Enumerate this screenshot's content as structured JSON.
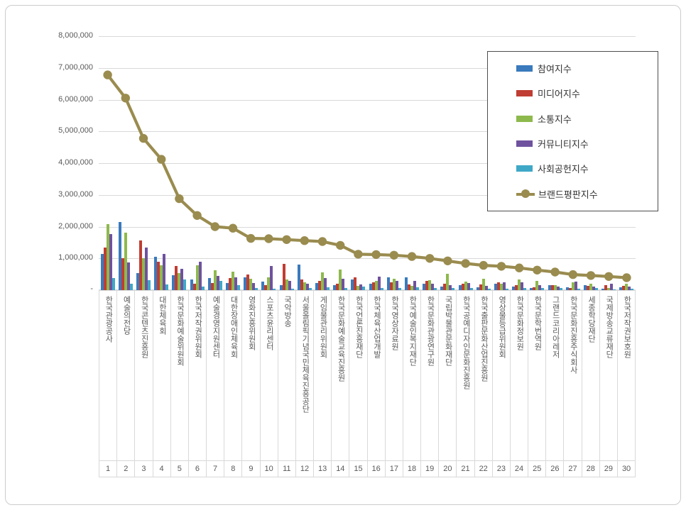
{
  "y_axis": {
    "tick_labels": [
      "8,000,000",
      "7,000,000",
      "6,000,000",
      "5,000,000",
      "4,000,000",
      "3,000,000",
      "2,000,000",
      "1,000,000",
      "-"
    ]
  },
  "rank_row": [
    "1",
    "2",
    "3",
    "4",
    "5",
    "6",
    "7",
    "8",
    "9",
    "10",
    "11",
    "12",
    "13",
    "14",
    "15",
    "16",
    "17",
    "18",
    "19",
    "20",
    "21",
    "22",
    "23",
    "24",
    "25",
    "26",
    "27",
    "28",
    "29",
    "30"
  ],
  "chart_data": {
    "type": "bar+line",
    "title": "",
    "grid": true,
    "legend_position": "top-right",
    "ylim": [
      0,
      8000000
    ],
    "ytick_interval": 1000000,
    "categories": [
      "한국관광공사",
      "예술의전당",
      "한국콘텐츠진흥원",
      "대한체육회",
      "한국문화예술위원회",
      "한국저작권위원회",
      "예술경영지원센터",
      "대한장애인체육회",
      "영화진흥위원회",
      "스포츠윤리센터",
      "국악방송",
      "서울올림픽기념국민체육진흥공단",
      "게임물관리위원회",
      "한국문화예술교육진흥원",
      "한국언론진흥재단",
      "한국체육산업개발",
      "한국영상자료원",
      "한국예술인복지재단",
      "한국문화관광연구원",
      "국립박물관문화재단",
      "한국공예디자인문화진흥원",
      "한국출판문화산업진흥원",
      "영상물등급위원회",
      "한국문화정보원",
      "한국문학번역원",
      "그랜드코리아레저",
      "한국문화진흥주식회사",
      "세종학당재단",
      "국제방송교류재단",
      "한국저작권보호원"
    ],
    "series": [
      {
        "name": "참여지수",
        "type": "bar",
        "color": "#3a7abd",
        "values": [
          1150000,
          2140000,
          540000,
          1060000,
          470000,
          330000,
          370000,
          220000,
          400000,
          260000,
          150000,
          800000,
          220000,
          150000,
          340000,
          190000,
          400000,
          410000,
          200000,
          110000,
          150000,
          100000,
          190000,
          110000,
          70000,
          150000,
          100000,
          160000,
          40000,
          100000
        ]
      },
      {
        "name": "미디어지수",
        "type": "bar",
        "color": "#bf3d32",
        "values": [
          1330000,
          1000000,
          1570000,
          890000,
          760000,
          190000,
          220000,
          390000,
          500000,
          160000,
          820000,
          340000,
          280000,
          190000,
          400000,
          250000,
          250000,
          170000,
          300000,
          190000,
          200000,
          170000,
          250000,
          150000,
          100000,
          160000,
          70000,
          130000,
          160000,
          130000
        ]
      },
      {
        "name": "소통지수",
        "type": "bar",
        "color": "#8eb94d",
        "values": [
          2070000,
          1800000,
          1000000,
          780000,
          540000,
          780000,
          630000,
          570000,
          350000,
          410000,
          340000,
          250000,
          560000,
          650000,
          130000,
          300000,
          350000,
          130000,
          320000,
          520000,
          260000,
          350000,
          200000,
          340000,
          280000,
          150000,
          250000,
          200000,
          70000,
          200000
        ]
      },
      {
        "name": "커뮤니티지수",
        "type": "bar",
        "color": "#6f529e",
        "values": [
          1760000,
          870000,
          1330000,
          1150000,
          660000,
          900000,
          450000,
          410000,
          220000,
          750000,
          300000,
          200000,
          370000,
          360000,
          180000,
          430000,
          300000,
          300000,
          200000,
          160000,
          220000,
          140000,
          250000,
          250000,
          150000,
          110000,
          260000,
          110000,
          200000,
          110000
        ]
      },
      {
        "name": "사회공헌지수",
        "type": "bar",
        "color": "#3fa8c7",
        "values": [
          370000,
          190000,
          310000,
          170000,
          330000,
          110000,
          280000,
          160000,
          70000,
          50000,
          40000,
          70000,
          100000,
          60000,
          110000,
          70000,
          70000,
          90000,
          60000,
          60000,
          70000,
          40000,
          50000,
          60000,
          60000,
          70000,
          40000,
          60000,
          30000,
          40000
        ]
      },
      {
        "name": "브랜드평판지수",
        "type": "line",
        "color": "#9a8c4f",
        "values": [
          6780000,
          6050000,
          4780000,
          4120000,
          2880000,
          2350000,
          2000000,
          1950000,
          1630000,
          1620000,
          1590000,
          1560000,
          1530000,
          1410000,
          1130000,
          1120000,
          1100000,
          1060000,
          1000000,
          920000,
          840000,
          780000,
          750000,
          700000,
          630000,
          570000,
          490000,
          460000,
          430000,
          390000
        ]
      }
    ]
  }
}
